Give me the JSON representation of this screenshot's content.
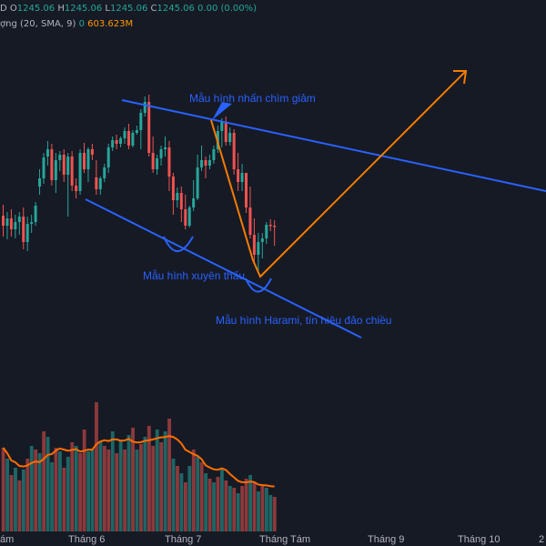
{
  "legend": {
    "symbol_tail": "D",
    "o_label": "O",
    "o_value": "1245.06",
    "h_label": "H",
    "h_value": "1245.06",
    "l_label": "L",
    "l_value": "1245.06",
    "c_label": "C",
    "c_value": "1245.06",
    "change": "0.00 (0.00%)",
    "volume_label": "ợng (20, SMA, 9)",
    "volume_value": "0",
    "sma_value": "603.623M"
  },
  "annotations": {
    "engulfing": "Mẫu hình nhấn chìm giảm",
    "piercing": "Mẫu hình xuyên thấu",
    "harami": "Mẫu hình Harami, tín hiệu đảo chiều"
  },
  "x_axis_labels": [
    "ám",
    "Tháng 6",
    "Tháng 7",
    "Tháng Tám",
    "Tháng 9",
    "Tháng 10",
    "2"
  ],
  "colors": {
    "background": "#161a25",
    "up": "#26a69a",
    "down": "#ef5350",
    "trend_line": "#2962ff",
    "projection": "#f57c00",
    "volume_sma": "#ff6d00",
    "annotation_text": "#2962ff"
  },
  "chart_data": {
    "type": "candlestick",
    "price_series": [
      {
        "o": 237,
        "h": 225,
        "l": 260,
        "c": 248
      },
      {
        "o": 248,
        "h": 233,
        "l": 263,
        "c": 240
      },
      {
        "o": 240,
        "h": 230,
        "l": 260,
        "c": 252
      },
      {
        "o": 252,
        "h": 236,
        "l": 262,
        "c": 244
      },
      {
        "o": 244,
        "h": 233,
        "l": 258,
        "c": 238
      },
      {
        "o": 238,
        "h": 228,
        "l": 274,
        "c": 266
      },
      {
        "o": 266,
        "h": 238,
        "l": 276,
        "c": 246
      },
      {
        "o": 246,
        "h": 236,
        "l": 256,
        "c": 244
      },
      {
        "o": 244,
        "h": 222,
        "l": 248,
        "c": 226
      },
      {
        "o": 205,
        "h": 186,
        "l": 214,
        "c": 196
      },
      {
        "o": 196,
        "h": 168,
        "l": 202,
        "c": 173
      },
      {
        "o": 172,
        "h": 155,
        "l": 182,
        "c": 164
      },
      {
        "o": 164,
        "h": 158,
        "l": 204,
        "c": 198
      },
      {
        "o": 198,
        "h": 168,
        "l": 212,
        "c": 176
      },
      {
        "o": 176,
        "h": 166,
        "l": 188,
        "c": 170
      },
      {
        "o": 170,
        "h": 164,
        "l": 200,
        "c": 192
      },
      {
        "o": 192,
        "h": 168,
        "l": 238,
        "c": 172
      },
      {
        "o": 172,
        "h": 166,
        "l": 210,
        "c": 204
      },
      {
        "o": 204,
        "h": 196,
        "l": 218,
        "c": 210
      },
      {
        "o": 210,
        "h": 164,
        "l": 214,
        "c": 168
      },
      {
        "o": 168,
        "h": 157,
        "l": 190,
        "c": 186
      },
      {
        "o": 186,
        "h": 162,
        "l": 200,
        "c": 164
      },
      {
        "o": 164,
        "h": 158,
        "l": 176,
        "c": 170
      },
      {
        "o": 195,
        "h": 176,
        "l": 214,
        "c": 208
      },
      {
        "o": 208,
        "h": 194,
        "l": 214,
        "c": 196
      },
      {
        "o": 196,
        "h": 180,
        "l": 200,
        "c": 184
      },
      {
        "o": 184,
        "h": 158,
        "l": 190,
        "c": 162
      },
      {
        "o": 162,
        "h": 150,
        "l": 166,
        "c": 154
      },
      {
        "o": 154,
        "h": 148,
        "l": 164,
        "c": 158
      },
      {
        "o": 158,
        "h": 150,
        "l": 162,
        "c": 152
      },
      {
        "o": 152,
        "h": 140,
        "l": 158,
        "c": 144
      },
      {
        "o": 144,
        "h": 136,
        "l": 164,
        "c": 160
      },
      {
        "o": 160,
        "h": 143,
        "l": 162,
        "c": 146
      },
      {
        "o": 146,
        "h": 138,
        "l": 148,
        "c": 143
      },
      {
        "o": 143,
        "h": 120,
        "l": 164,
        "c": 124
      },
      {
        "o": 124,
        "h": 106,
        "l": 128,
        "c": 112
      },
      {
        "o": 112,
        "h": 104,
        "l": 172,
        "c": 168
      },
      {
        "o": 168,
        "h": 150,
        "l": 190,
        "c": 186
      },
      {
        "o": 186,
        "h": 170,
        "l": 192,
        "c": 174
      },
      {
        "o": 174,
        "h": 160,
        "l": 182,
        "c": 164
      },
      {
        "o": 164,
        "h": 150,
        "l": 172,
        "c": 162
      },
      {
        "o": 162,
        "h": 155,
        "l": 210,
        "c": 194
      },
      {
        "o": 194,
        "h": 190,
        "l": 236,
        "c": 220
      },
      {
        "o": 220,
        "h": 206,
        "l": 228,
        "c": 212
      },
      {
        "o": 212,
        "h": 205,
        "l": 244,
        "c": 230
      },
      {
        "o": 230,
        "h": 214,
        "l": 252,
        "c": 248
      },
      {
        "o": 248,
        "h": 226,
        "l": 250,
        "c": 228
      },
      {
        "o": 228,
        "h": 198,
        "l": 232,
        "c": 218
      },
      {
        "o": 218,
        "h": 170,
        "l": 220,
        "c": 184
      },
      {
        "o": 184,
        "h": 160,
        "l": 188,
        "c": 176
      },
      {
        "o": 176,
        "h": 172,
        "l": 196,
        "c": 182
      },
      {
        "o": 182,
        "h": 170,
        "l": 186,
        "c": 176
      },
      {
        "o": 176,
        "h": 160,
        "l": 180,
        "c": 164
      },
      {
        "o": 164,
        "h": 138,
        "l": 168,
        "c": 144
      },
      {
        "o": 144,
        "h": 130,
        "l": 162,
        "c": 134
      },
      {
        "o": 134,
        "h": 128,
        "l": 160,
        "c": 156
      },
      {
        "o": 156,
        "h": 140,
        "l": 160,
        "c": 146
      },
      {
        "o": 146,
        "h": 142,
        "l": 192,
        "c": 186
      },
      {
        "o": 186,
        "h": 168,
        "l": 210,
        "c": 200
      },
      {
        "o": 200,
        "h": 180,
        "l": 210,
        "c": 190
      },
      {
        "o": 190,
        "h": 210,
        "l": 234,
        "c": 228
      },
      {
        "o": 228,
        "h": 205,
        "l": 262,
        "c": 258
      },
      {
        "o": 258,
        "h": 240,
        "l": 290,
        "c": 280
      },
      {
        "o": 280,
        "h": 256,
        "l": 300,
        "c": 266
      },
      {
        "o": 266,
        "h": 256,
        "l": 284,
        "c": 262
      },
      {
        "o": 262,
        "h": 244,
        "l": 268,
        "c": 247
      },
      {
        "o": 247,
        "h": 241,
        "l": 254,
        "c": 248
      },
      {
        "o": 248,
        "h": 242,
        "l": 270,
        "c": 249
      }
    ],
    "volume_series": [
      {
        "v": 92,
        "d": "down"
      },
      {
        "v": 80,
        "d": "up"
      },
      {
        "v": 62,
        "d": "down"
      },
      {
        "v": 70,
        "d": "up"
      },
      {
        "v": 56,
        "d": "down"
      },
      {
        "v": 68,
        "d": "up"
      },
      {
        "v": 80,
        "d": "down"
      },
      {
        "v": 94,
        "d": "up"
      },
      {
        "v": 90,
        "d": "down"
      },
      {
        "v": 86,
        "d": "up"
      },
      {
        "v": 110,
        "d": "down"
      },
      {
        "v": 104,
        "d": "up"
      },
      {
        "v": 76,
        "d": "up"
      },
      {
        "v": 92,
        "d": "down"
      },
      {
        "v": 88,
        "d": "up"
      },
      {
        "v": 70,
        "d": "down"
      },
      {
        "v": 82,
        "d": "up"
      },
      {
        "v": 98,
        "d": "down"
      },
      {
        "v": 94,
        "d": "up"
      },
      {
        "v": 86,
        "d": "down"
      },
      {
        "v": 112,
        "d": "down"
      },
      {
        "v": 88,
        "d": "up"
      },
      {
        "v": 90,
        "d": "up"
      },
      {
        "v": 142,
        "d": "down"
      },
      {
        "v": 98,
        "d": "up"
      },
      {
        "v": 94,
        "d": "down"
      },
      {
        "v": 90,
        "d": "down"
      },
      {
        "v": 110,
        "d": "up"
      },
      {
        "v": 86,
        "d": "down"
      },
      {
        "v": 100,
        "d": "up"
      },
      {
        "v": 90,
        "d": "down"
      },
      {
        "v": 106,
        "d": "up"
      },
      {
        "v": 114,
        "d": "down"
      },
      {
        "v": 90,
        "d": "up"
      },
      {
        "v": 96,
        "d": "down"
      },
      {
        "v": 104,
        "d": "up"
      },
      {
        "v": 116,
        "d": "down"
      },
      {
        "v": 94,
        "d": "down"
      },
      {
        "v": 112,
        "d": "up"
      },
      {
        "v": 98,
        "d": "down"
      },
      {
        "v": 110,
        "d": "up"
      },
      {
        "v": 124,
        "d": "down"
      },
      {
        "v": 80,
        "d": "up"
      },
      {
        "v": 72,
        "d": "down"
      },
      {
        "v": 64,
        "d": "up"
      },
      {
        "v": 54,
        "d": "down"
      },
      {
        "v": 72,
        "d": "up"
      },
      {
        "v": 90,
        "d": "down"
      },
      {
        "v": 82,
        "d": "up"
      },
      {
        "v": 76,
        "d": "down"
      },
      {
        "v": 64,
        "d": "up"
      },
      {
        "v": 58,
        "d": "down"
      },
      {
        "v": 54,
        "d": "up"
      },
      {
        "v": 60,
        "d": "down"
      },
      {
        "v": 68,
        "d": "up"
      },
      {
        "v": 56,
        "d": "down"
      },
      {
        "v": 50,
        "d": "up"
      },
      {
        "v": 48,
        "d": "down"
      },
      {
        "v": 42,
        "d": "up"
      },
      {
        "v": 50,
        "d": "down"
      },
      {
        "v": 58,
        "d": "down"
      },
      {
        "v": 62,
        "d": "up"
      },
      {
        "v": 54,
        "d": "down"
      },
      {
        "v": 44,
        "d": "up"
      },
      {
        "v": 50,
        "d": "down"
      },
      {
        "v": 48,
        "d": "up"
      },
      {
        "v": 40,
        "d": "up"
      },
      {
        "v": 38,
        "d": "down"
      }
    ]
  }
}
